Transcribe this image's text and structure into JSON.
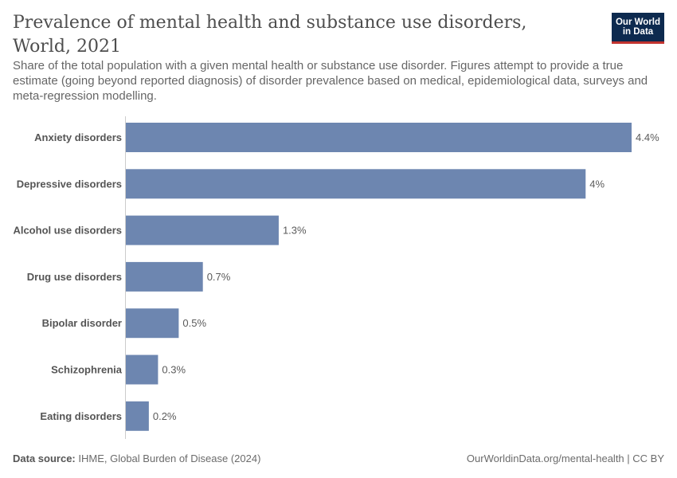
{
  "header": {
    "title": "Prevalence of mental health and substance use disorders, World, 2021",
    "subtitle": "Share of the total population with a given mental health or substance use disorder. Figures attempt to provide a true estimate (going beyond reported diagnosis) of disorder prevalence based on medical, epidemiological data, surveys and meta-regression modelling.",
    "logo_line1": "Our World",
    "logo_line2": "in Data"
  },
  "footer": {
    "source_label": "Data source:",
    "source_text": "IHME, Global Burden of Disease (2024)",
    "attribution": "OurWorldinData.org/mental-health | CC BY"
  },
  "colors": {
    "bar": "#6d86b0",
    "logo_bg": "#0d2a4f",
    "logo_accent": "#c2332f"
  },
  "chart_data": {
    "type": "bar",
    "orientation": "horizontal",
    "unit": "%",
    "categories": [
      "Anxiety disorders",
      "Depressive disorders",
      "Alcohol use disorders",
      "Drug use disorders",
      "Bipolar disorder",
      "Schizophrenia",
      "Eating disorders"
    ],
    "values": [
      4.4,
      4.0,
      1.33,
      0.67,
      0.46,
      0.28,
      0.2
    ],
    "data_labels": [
      "4.4%",
      "4%",
      "1.3%",
      "0.7%",
      "0.5%",
      "0.3%",
      "0.2%"
    ],
    "xlim": [
      0,
      4.4
    ],
    "grid": false,
    "legend": "none"
  }
}
